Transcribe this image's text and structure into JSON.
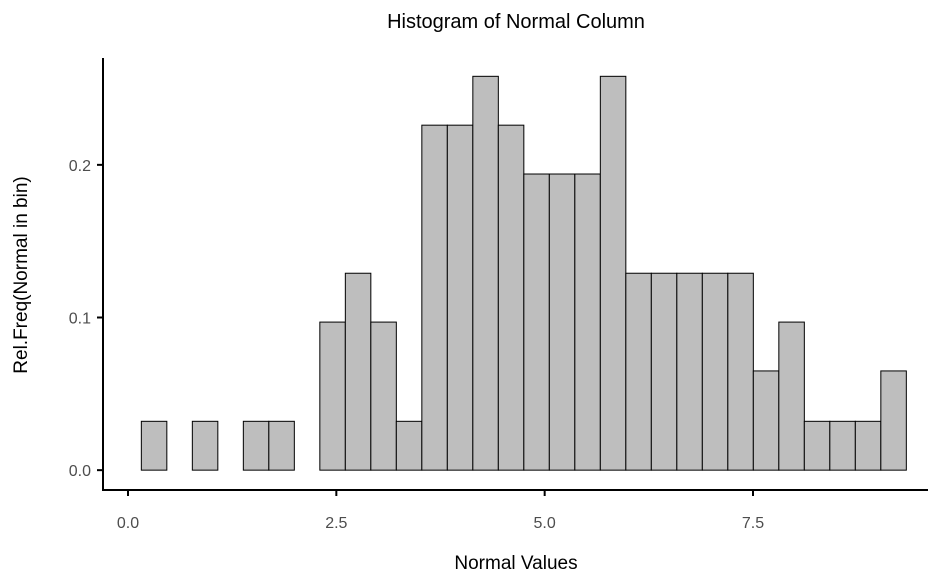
{
  "chart_data": {
    "type": "bar",
    "title": "Histogram of Normal Column",
    "xlabel": "Normal Values",
    "ylabel": "Rel.Freq(Normal in bin)",
    "bin_width": 0.306,
    "bins": [
      {
        "start": 0.16,
        "value": 0.032
      },
      {
        "start": 0.466,
        "value": 0.0
      },
      {
        "start": 0.772,
        "value": 0.032
      },
      {
        "start": 1.078,
        "value": 0.0
      },
      {
        "start": 1.384,
        "value": 0.032
      },
      {
        "start": 1.69,
        "value": 0.032
      },
      {
        "start": 1.996,
        "value": 0.0
      },
      {
        "start": 2.302,
        "value": 0.097
      },
      {
        "start": 2.608,
        "value": 0.129
      },
      {
        "start": 2.914,
        "value": 0.097
      },
      {
        "start": 3.22,
        "value": 0.032
      },
      {
        "start": 3.526,
        "value": 0.226
      },
      {
        "start": 3.832,
        "value": 0.226
      },
      {
        "start": 4.138,
        "value": 0.258
      },
      {
        "start": 4.444,
        "value": 0.226
      },
      {
        "start": 4.75,
        "value": 0.194
      },
      {
        "start": 5.056,
        "value": 0.194
      },
      {
        "start": 5.362,
        "value": 0.194
      },
      {
        "start": 5.668,
        "value": 0.258
      },
      {
        "start": 5.974,
        "value": 0.129
      },
      {
        "start": 6.28,
        "value": 0.129
      },
      {
        "start": 6.586,
        "value": 0.129
      },
      {
        "start": 6.892,
        "value": 0.129
      },
      {
        "start": 7.198,
        "value": 0.129
      },
      {
        "start": 7.504,
        "value": 0.065
      },
      {
        "start": 7.81,
        "value": 0.097
      },
      {
        "start": 8.116,
        "value": 0.032
      },
      {
        "start": 8.422,
        "value": 0.032
      },
      {
        "start": 8.728,
        "value": 0.032
      },
      {
        "start": 9.034,
        "value": 0.065
      }
    ],
    "xlim": [
      -0.3,
      9.6
    ],
    "ylim": [
      -0.013,
      0.27
    ],
    "x_ticks": [
      {
        "value": 0.0,
        "label": "0.0"
      },
      {
        "value": 2.5,
        "label": "2.5"
      },
      {
        "value": 5.0,
        "label": "5.0"
      },
      {
        "value": 7.5,
        "label": "7.5"
      }
    ],
    "y_ticks": [
      {
        "value": 0.0,
        "label": "0.0"
      },
      {
        "value": 0.1,
        "label": "0.1"
      },
      {
        "value": 0.2,
        "label": "0.2"
      }
    ],
    "bar_fill": "#bebebe",
    "bar_stroke": "#000000",
    "grid": false,
    "legend": "none"
  }
}
